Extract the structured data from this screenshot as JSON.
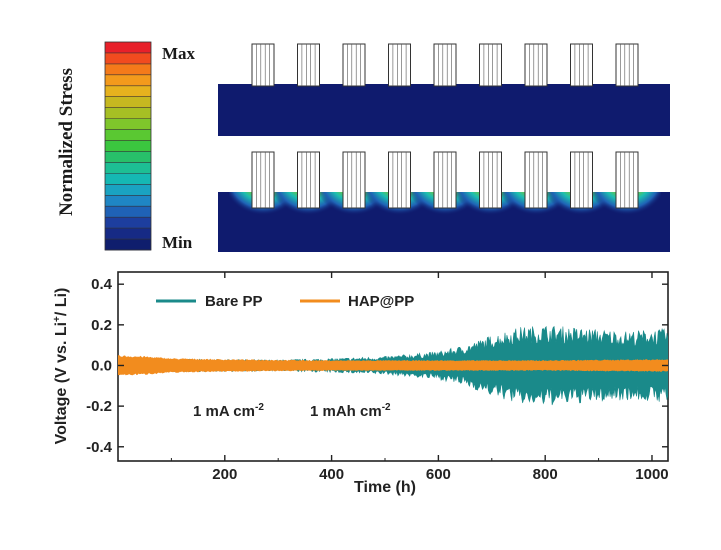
{
  "colorbar": {
    "title": "Normalized Stress",
    "max_label": "Max",
    "min_label": "Min",
    "colors": [
      "#e8202a",
      "#f14b1f",
      "#f47a1a",
      "#f39a1c",
      "#e6b21e",
      "#c6b820",
      "#a6bf24",
      "#7fc62b",
      "#5ac832",
      "#3bc63f",
      "#28c06a",
      "#1dbf94",
      "#15b8b3",
      "#1aa3c1",
      "#1f86c4",
      "#1f62b6",
      "#1d3e9e",
      "#162a85",
      "#0f1e6d"
    ]
  },
  "simulation": {
    "panels": [
      "Bare PP",
      "HAP@PP"
    ],
    "electrode_count": 9,
    "background_color": "#0f1b6e"
  },
  "chart_data": {
    "type": "line",
    "title": "",
    "xlabel": "Time (h)",
    "ylabel_prefix": "Voltage (V vs. Li",
    "ylabel_sup": "+",
    "ylabel_suffix": "/ Li)",
    "xlim": [
      0,
      1030
    ],
    "ylim": [
      -0.47,
      0.46
    ],
    "xticks": [
      200,
      400,
      600,
      800,
      1000
    ],
    "yticks": [
      -0.4,
      -0.2,
      0.0,
      0.2,
      0.4
    ],
    "xtick_labels": [
      "200",
      "400",
      "600",
      "800",
      "1000"
    ],
    "ytick_labels": [
      "-0.4",
      "-0.2",
      "0.0",
      "0.2",
      "0.4"
    ],
    "annotation_1": {
      "base": "1 mA cm",
      "sup": "-2"
    },
    "annotation_2": {
      "base": "1 mAh cm",
      "sup": "-2"
    },
    "legend_position": "top-left",
    "series": [
      {
        "name": "Bare PP",
        "color": "#1a8a8a",
        "envelope_time_h": [
          0,
          100,
          200,
          300,
          400,
          500,
          600,
          650,
          700,
          750,
          800,
          850,
          900,
          950,
          1000,
          1030
        ],
        "amplitude_V": [
          0.03,
          0.032,
          0.03,
          0.028,
          0.035,
          0.045,
          0.07,
          0.1,
          0.15,
          0.19,
          0.2,
          0.19,
          0.18,
          0.17,
          0.18,
          0.18
        ]
      },
      {
        "name": "HAP@PP",
        "color": "#f28c1e",
        "envelope_time_h": [
          0,
          50,
          100,
          200,
          400,
          600,
          800,
          1000,
          1030
        ],
        "amplitude_V": [
          0.05,
          0.045,
          0.035,
          0.03,
          0.025,
          0.025,
          0.025,
          0.03,
          0.03
        ]
      }
    ]
  }
}
